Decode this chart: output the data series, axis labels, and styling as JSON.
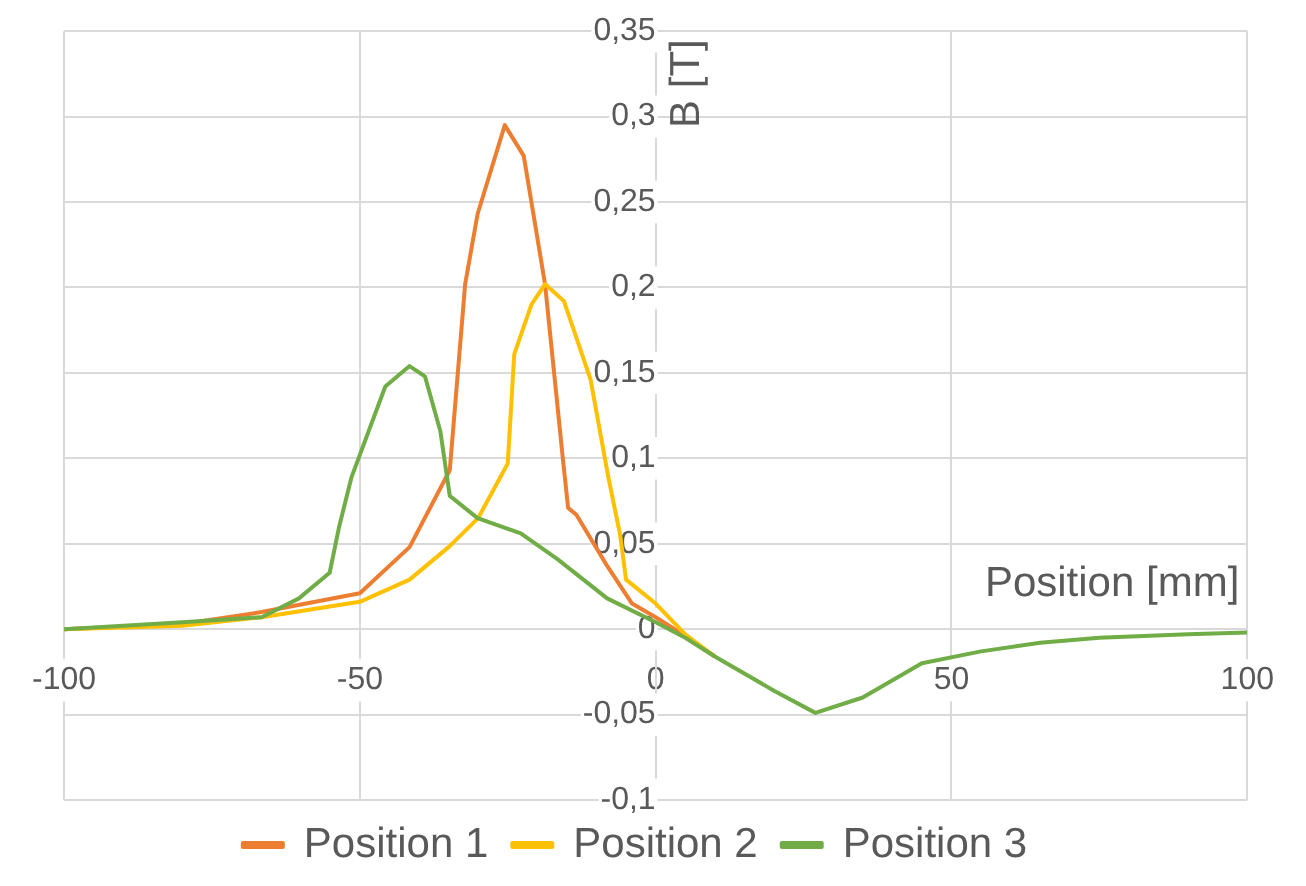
{
  "chart_data": {
    "type": "line",
    "xlabel": "Position [mm]",
    "ylabel": "B [T]",
    "xlim": [
      -100,
      100
    ],
    "xticks": [
      -100,
      -50,
      0,
      50,
      100
    ],
    "ylim": [
      -0.1,
      0.35
    ],
    "yticks": [
      {
        "value": -0.1,
        "label": "-0,1"
      },
      {
        "value": -0.05,
        "label": "-0,05"
      },
      {
        "value": 0,
        "label": "0"
      },
      {
        "value": 0.05,
        "label": "0,05"
      },
      {
        "value": 0.1,
        "label": "0,1"
      },
      {
        "value": 0.15,
        "label": "0,15"
      },
      {
        "value": 0.2,
        "label": "0,2"
      },
      {
        "value": 0.25,
        "label": "0,25"
      },
      {
        "value": 0.3,
        "label": "0,3"
      },
      {
        "value": 0.35,
        "label": "0,35"
      }
    ],
    "grid": true,
    "legend": "bottom",
    "marker": "none",
    "line_style": "solid",
    "series": [
      {
        "name": "Position 1",
        "color": "#ed7d31",
        "x": [
          -100,
          -80,
          -66.6,
          -50,
          -41.6,
          -34.8,
          -32.2,
          -30.1,
          -25.5,
          -22.3,
          -18.7,
          -15.6,
          -14.8,
          -13.4,
          -8.2,
          -4,
          0,
          5,
          10
        ],
        "values": [
          0,
          0.003,
          0.01,
          0.021,
          0.048,
          0.093,
          0.202,
          0.243,
          0.295,
          0.277,
          0.202,
          0.097,
          0.071,
          0.067,
          0.037,
          0.015,
          0.007,
          -0.004,
          -0.016
        ]
      },
      {
        "name": "Position 2",
        "color": "#ffc000",
        "x": [
          -100,
          -80,
          -66.6,
          -50,
          -41.6,
          -35,
          -30,
          -25,
          -23.9,
          -21,
          -18.7,
          -15.5,
          -11,
          -8,
          -6,
          -5,
          0,
          5,
          10
        ],
        "values": [
          0,
          0.002,
          0.007,
          0.016,
          0.029,
          0.048,
          0.065,
          0.097,
          0.161,
          0.19,
          0.202,
          0.192,
          0.146,
          0.089,
          0.055,
          0.029,
          0.015,
          -0.003,
          -0.016
        ]
      },
      {
        "name": "Position 3",
        "color": "#70ad47",
        "x": [
          -100,
          -80,
          -66.6,
          -60.3,
          -55.1,
          -53.5,
          -51.4,
          -45.7,
          -41.6,
          -39,
          -36.4,
          -34.8,
          -30.1,
          -22.8,
          -16.6,
          -8.2,
          0,
          5,
          10,
          20,
          27,
          35,
          45,
          55,
          65,
          75,
          90,
          100
        ],
        "values": [
          0,
          0.004,
          0.007,
          0.018,
          0.033,
          0.06,
          0.089,
          0.142,
          0.154,
          0.148,
          0.116,
          0.078,
          0.065,
          0.056,
          0.041,
          0.018,
          0.004,
          -0.005,
          -0.016,
          -0.036,
          -0.049,
          -0.04,
          -0.02,
          -0.013,
          -0.008,
          -0.005,
          -0.003,
          -0.002
        ]
      }
    ]
  }
}
